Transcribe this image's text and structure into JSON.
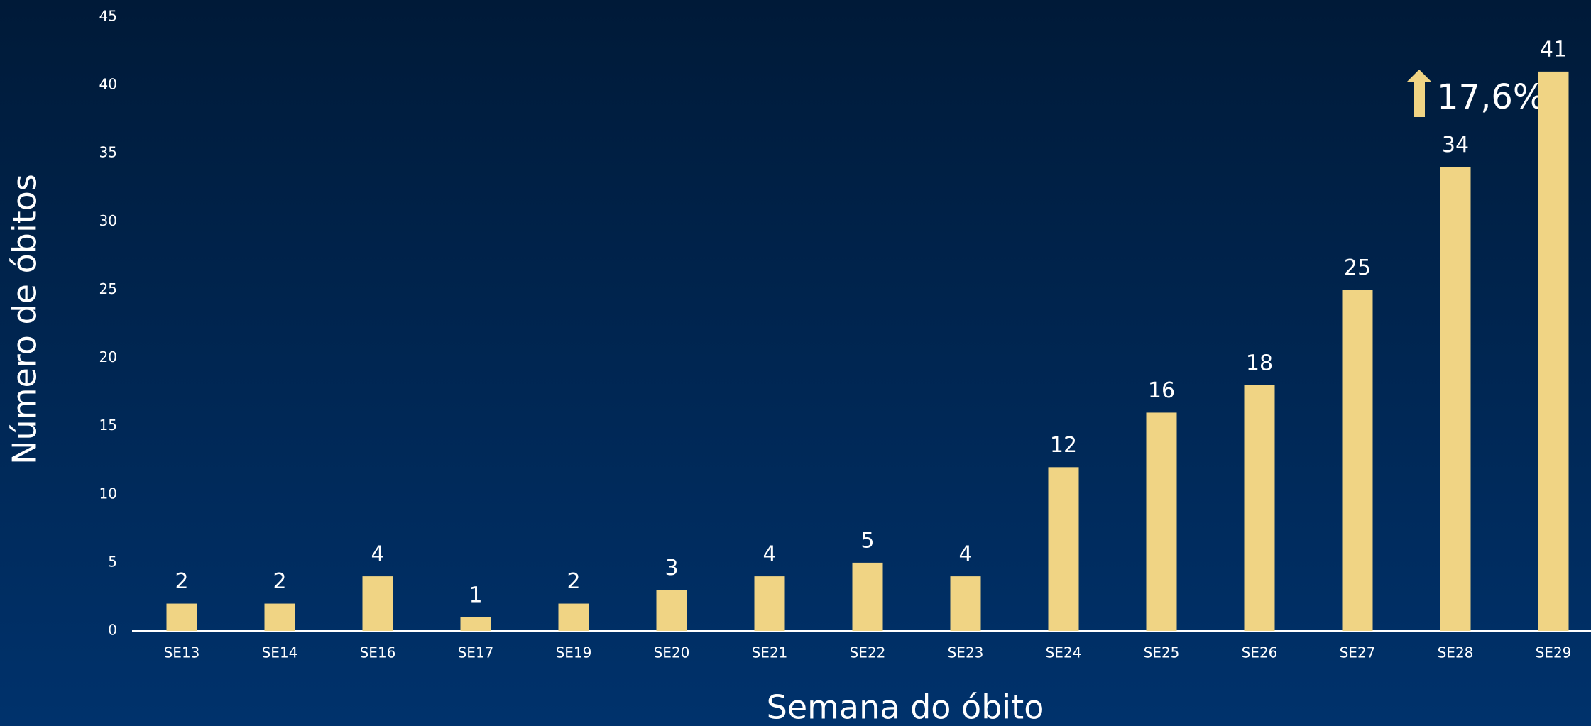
{
  "chart_data": {
    "type": "bar",
    "x_label": "Semana do óbito",
    "y_label": "Número de óbitos",
    "annotation": "17,6%",
    "categories": [
      "SE13",
      "SE14",
      "SE16",
      "SE17",
      "SE19",
      "SE20",
      "SE21",
      "SE22",
      "SE23",
      "SE24",
      "SE25",
      "SE26",
      "SE27",
      "SE28",
      "SE29"
    ],
    "values": [
      2,
      2,
      4,
      1,
      2,
      3,
      4,
      5,
      4,
      12,
      16,
      18,
      25,
      34,
      41
    ],
    "color": "#f0d484",
    "ylim": [
      0,
      45
    ],
    "yticks": [
      0,
      5,
      10,
      15,
      20,
      25,
      30,
      35,
      40,
      45
    ],
    "grid": false
  }
}
